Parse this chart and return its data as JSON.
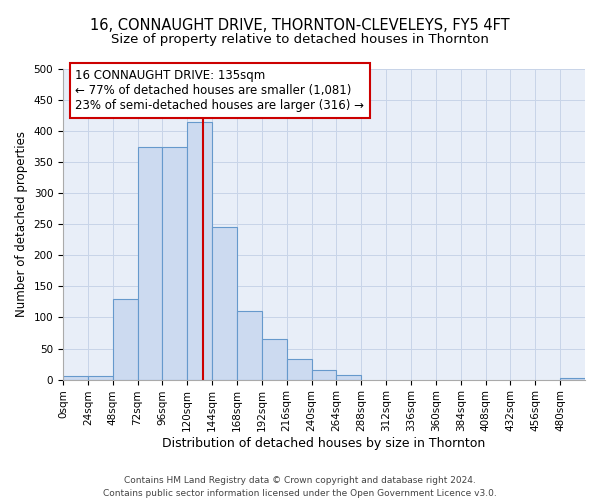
{
  "title": "16, CONNAUGHT DRIVE, THORNTON-CLEVELEYS, FY5 4FT",
  "subtitle": "Size of property relative to detached houses in Thornton",
  "xlabel": "Distribution of detached houses by size in Thornton",
  "ylabel": "Number of detached properties",
  "bar_edges": [
    0,
    24,
    48,
    72,
    96,
    120,
    144,
    168,
    192,
    216,
    240,
    264,
    288,
    312,
    336,
    360,
    384,
    408,
    432,
    456,
    480,
    504
  ],
  "bar_heights": [
    5,
    5,
    130,
    375,
    375,
    415,
    245,
    110,
    65,
    33,
    15,
    8,
    0,
    0,
    0,
    0,
    0,
    0,
    0,
    0,
    3
  ],
  "bar_color": "#ccdaf0",
  "bar_edge_color": "#6699cc",
  "vline_x": 135,
  "vline_color": "#cc0000",
  "annotation_line1": "16 CONNAUGHT DRIVE: 135sqm",
  "annotation_line2": "← 77% of detached houses are smaller (1,081)",
  "annotation_line3": "23% of semi-detached houses are larger (316) →",
  "ylim": [
    0,
    500
  ],
  "xlim": [
    0,
    504
  ],
  "yticks": [
    0,
    50,
    100,
    150,
    200,
    250,
    300,
    350,
    400,
    450,
    500
  ],
  "xtick_labels": [
    "0sqm",
    "24sqm",
    "48sqm",
    "72sqm",
    "96sqm",
    "120sqm",
    "144sqm",
    "168sqm",
    "192sqm",
    "216sqm",
    "240sqm",
    "264sqm",
    "288sqm",
    "312sqm",
    "336sqm",
    "360sqm",
    "384sqm",
    "408sqm",
    "432sqm",
    "456sqm",
    "480sqm"
  ],
  "xtick_positions": [
    0,
    24,
    48,
    72,
    96,
    120,
    144,
    168,
    192,
    216,
    240,
    264,
    288,
    312,
    336,
    360,
    384,
    408,
    432,
    456,
    480
  ],
  "grid_color": "#c8d4e8",
  "bg_color": "#e8eef8",
  "title_fontsize": 10.5,
  "subtitle_fontsize": 9.5,
  "xlabel_fontsize": 9,
  "ylabel_fontsize": 8.5,
  "tick_fontsize": 7.5,
  "annotation_fontsize": 8.5,
  "footer_text": "Contains HM Land Registry data © Crown copyright and database right 2024.\nContains public sector information licensed under the Open Government Licence v3.0.",
  "footer_fontsize": 6.5
}
